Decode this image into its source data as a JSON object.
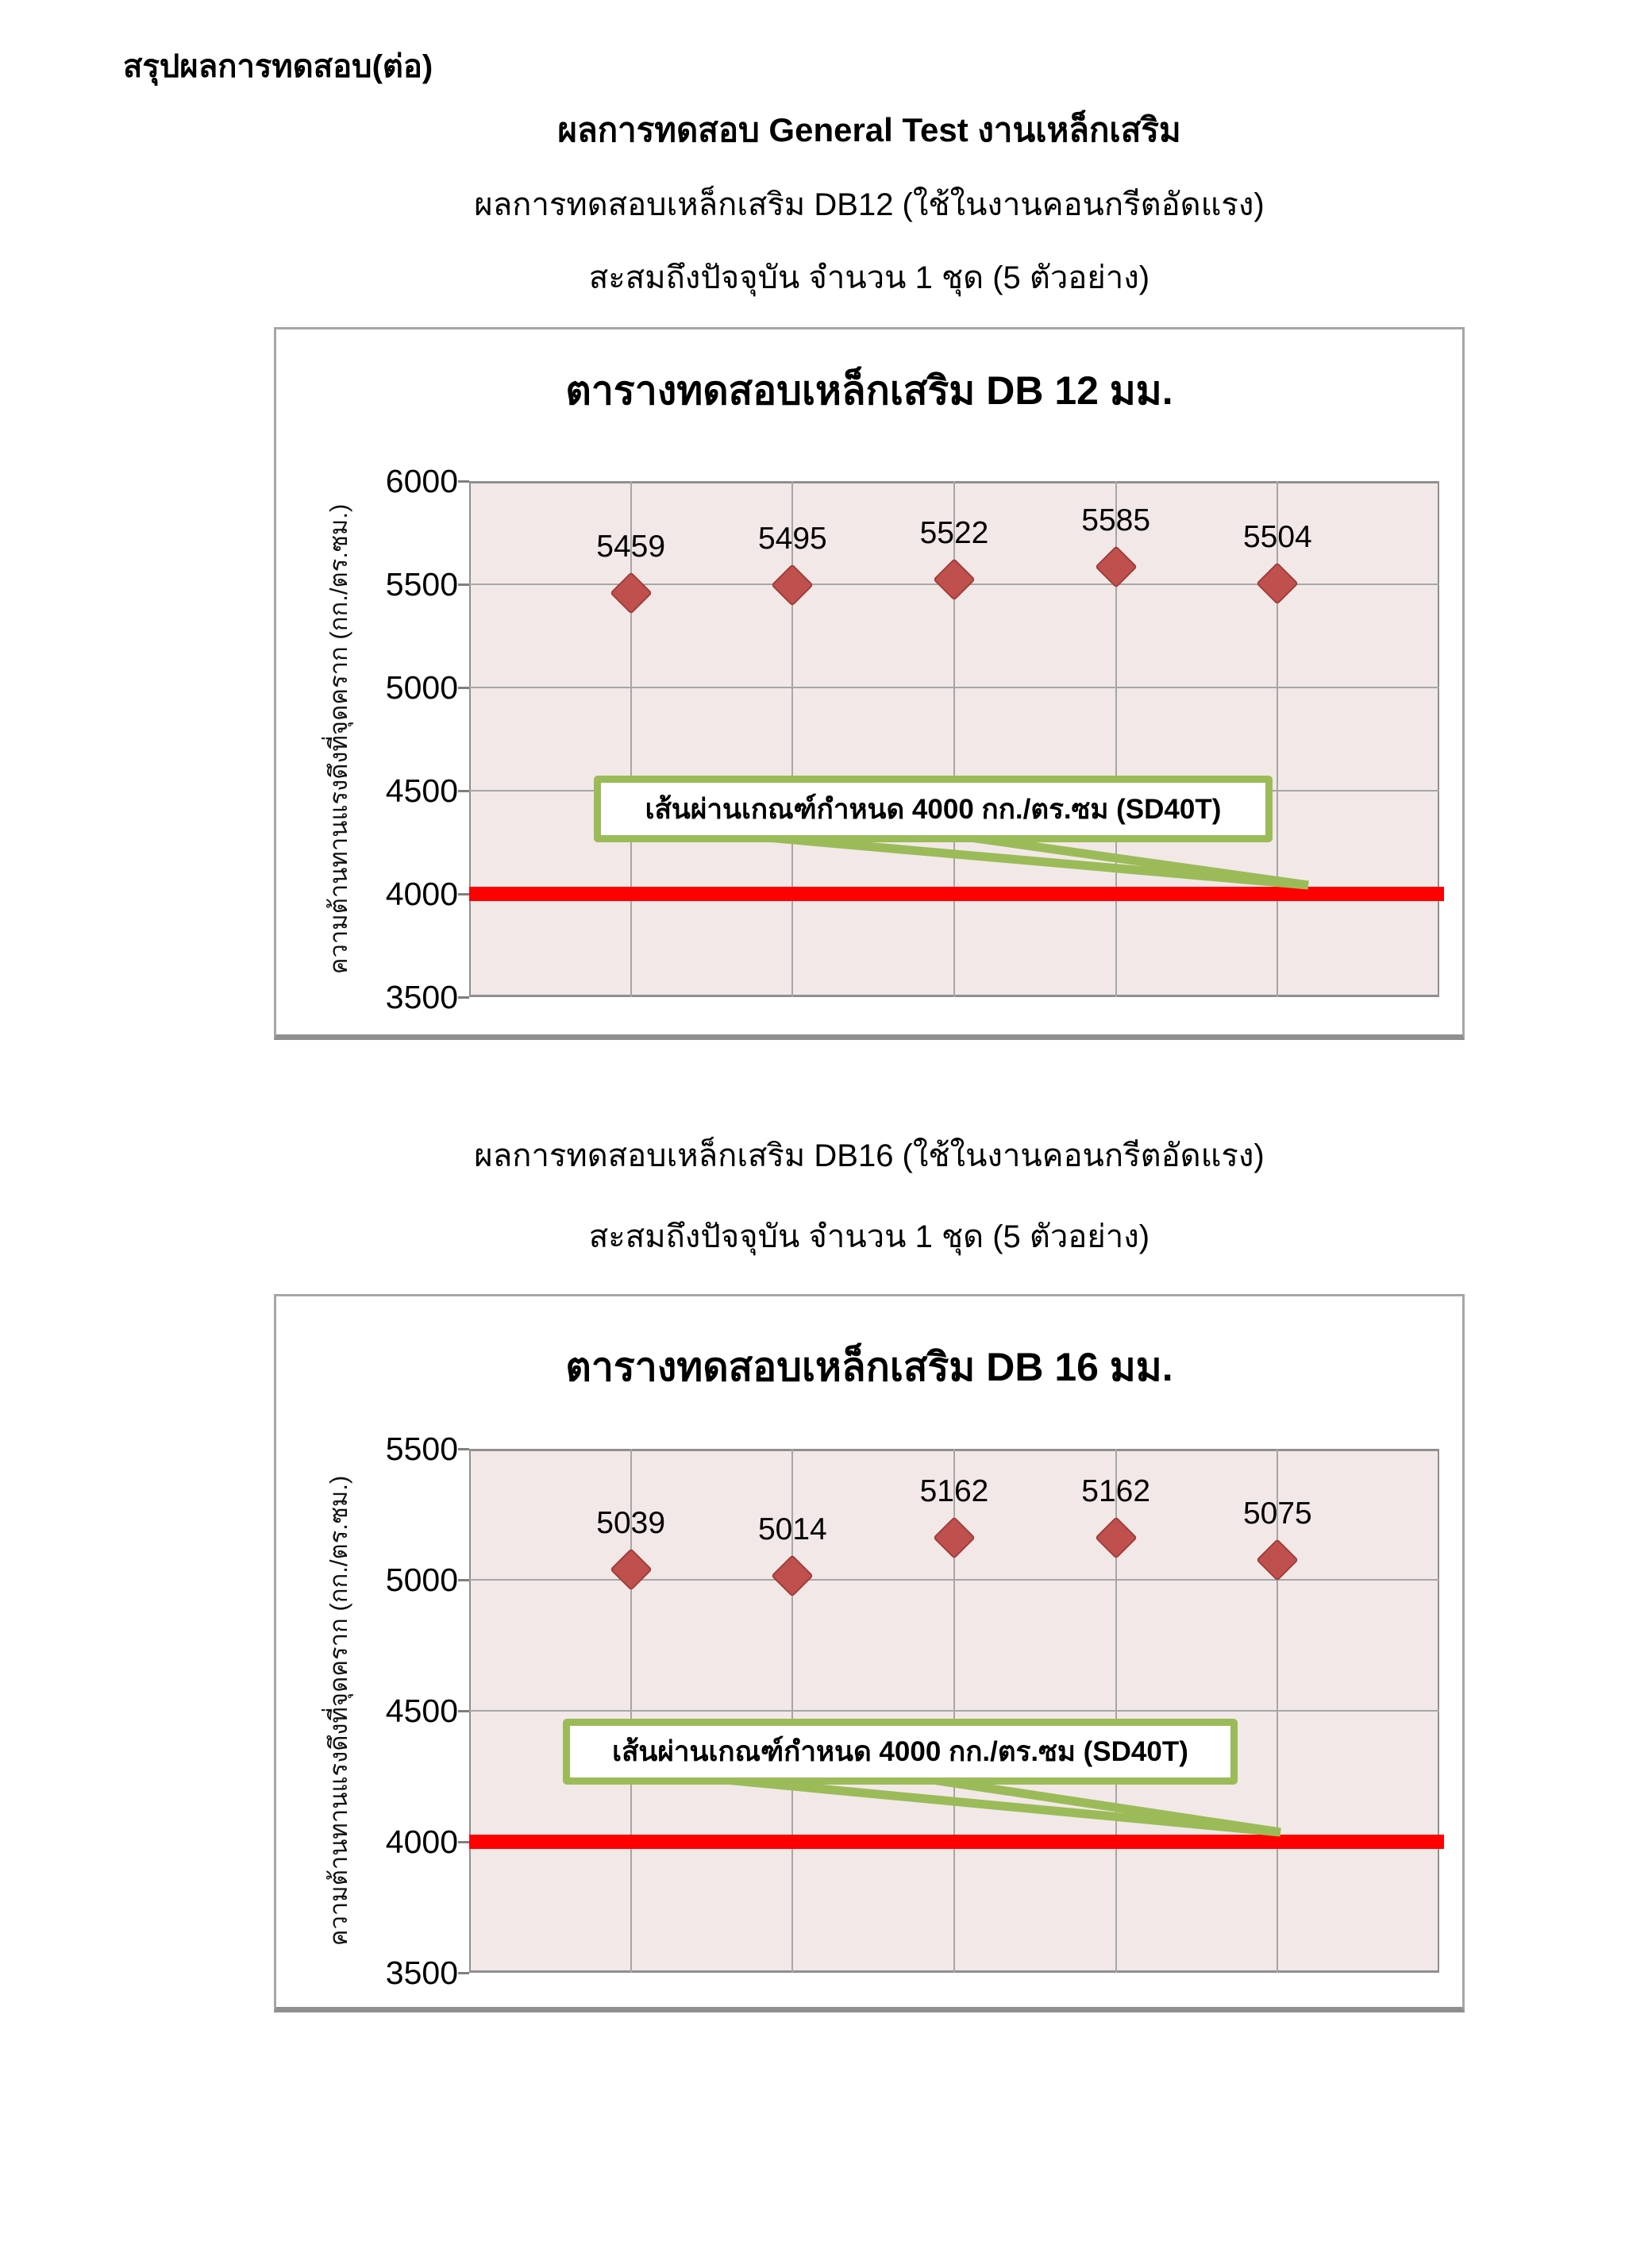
{
  "page": {
    "heading": "สรุปผลการทดสอบ(ต่อ)",
    "main_title": "ผลการทดสอบ General Test งานเหล็กเสริม"
  },
  "sections": [
    {
      "subtitle_line1": "ผลการทดสอบเหล็กเสริม DB12 (ใช้ในงานคอนกรีตอัดแรง)",
      "subtitle_line2": "สะสมถึงปัจจุบัน จำนวน 1 ชุด (5 ตัวอย่าง)"
    },
    {
      "subtitle_line1": "ผลการทดสอบเหล็กเสริม DB16 (ใช้ในงานคอนกรีตอัดแรง)",
      "subtitle_line2": "สะสมถึงปัจจุบัน จำนวน 1 ชุด (5 ตัวอย่าง)"
    }
  ],
  "chart_data": [
    {
      "type": "scatter",
      "title": "ตารางทดสอบเหล็กเสริม DB 12 มม.",
      "ylabel": "ความต้านทานแรงดึงที่จุดคราก (กก./ตร.ซม.)",
      "xlabel": "",
      "sample_index": [
        1,
        2,
        3,
        4,
        5
      ],
      "values": [
        5459,
        5495,
        5522,
        5585,
        5504
      ],
      "ylim": [
        3500,
        6000
      ],
      "yticks": [
        6000,
        5500,
        5000,
        4500,
        4000,
        3500
      ],
      "grid": true,
      "legend": "none",
      "marker": "diamond",
      "marker_color": "#c0504d",
      "plot_bg": "#f2e8e7",
      "reference_line": {
        "value": 4000,
        "color": "#ff0000",
        "label": "เส้นผ่านเกณฑ์กำหนด 4000 กก./ตร.ซม (SD40T)"
      }
    },
    {
      "type": "scatter",
      "title": "ตารางทดสอบเหล็กเสริม DB 16 มม.",
      "ylabel": "ความต้านทานแรงดึงที่จุดคราก (กก./ตร.ซม.)",
      "xlabel": "",
      "sample_index": [
        1,
        2,
        3,
        4,
        5
      ],
      "values": [
        5039,
        5014,
        5162,
        5162,
        5075
      ],
      "ylim": [
        3500,
        5500
      ],
      "yticks": [
        5500,
        5000,
        4500,
        4000,
        3500
      ],
      "grid": true,
      "legend": "none",
      "marker": "diamond",
      "marker_color": "#c0504d",
      "plot_bg": "#f2e8e7",
      "reference_line": {
        "value": 4000,
        "color": "#ff0000",
        "label": "เส้นผ่านเกณฑ์กำหนด 4000 กก./ตร.ซม (SD40T)"
      }
    }
  ]
}
